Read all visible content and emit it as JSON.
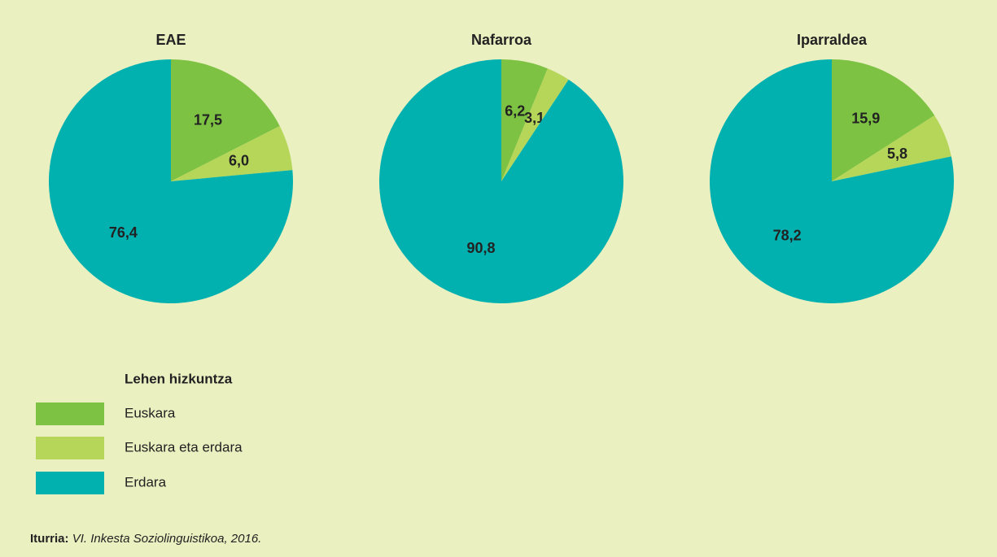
{
  "chart_data": [
    {
      "type": "pie",
      "title": "EAE",
      "values": [
        17.5,
        6.0,
        76.4
      ],
      "value_labels": [
        "17,5",
        "6,0",
        "76,4"
      ]
    },
    {
      "type": "pie",
      "title": "Nafarroa",
      "values": [
        6.2,
        3.1,
        90.8
      ],
      "value_labels": [
        "6,2",
        "3,1",
        "90,8"
      ]
    },
    {
      "type": "pie",
      "title": "Iparraldea",
      "values": [
        15.9,
        5.8,
        78.2
      ],
      "value_labels": [
        "15,9",
        "5,8",
        "78,2"
      ]
    }
  ],
  "legend": {
    "title": "Lehen hizkuntza",
    "categories": [
      "Euskara",
      "Euskara eta erdara",
      "Erdara"
    ],
    "colors": [
      "#7dc242",
      "#b6d65a",
      "#00b1b0"
    ]
  },
  "source": {
    "label": "Iturria:",
    "text": "VI. Inkesta Soziolinguistikoa, 2016."
  }
}
